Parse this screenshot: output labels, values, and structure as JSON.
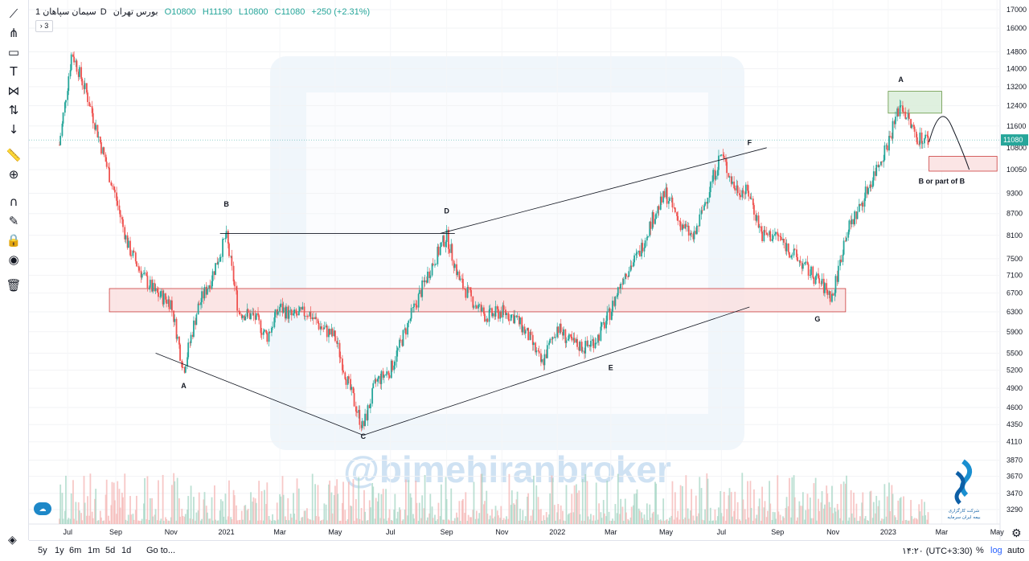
{
  "symbol": {
    "name": "سیمان سپاهان",
    "interval": "1D",
    "exchange": "بورس تهران",
    "open": "O10800",
    "high": "H11190",
    "low": "L10800",
    "close": "C11080",
    "change": "+250 (+2.31%)",
    "series_count": "3"
  },
  "watermark": "@bimehiranbroker",
  "logo_text": [
    "شرکت کارگزاری",
    "بیمه ایران سرمایه"
  ],
  "bottom": {
    "ranges": [
      "5y",
      "1y",
      "6m",
      "1m",
      "5d",
      "1d"
    ],
    "goto": "Go to...",
    "clock": "۱۴:۲۰ (UTC+3:30)",
    "percent": "%",
    "log": "log",
    "auto": "auto"
  },
  "toolbar": [
    "trend-line-icon",
    "pitchfork-icon",
    "rectangle-icon",
    "text-icon",
    "pattern-icon",
    "forecast-icon",
    "arrow-down-icon",
    "ruler-icon",
    "zoom-icon",
    "magnet-icon",
    "lock-pencil-icon",
    "lock-icon",
    "eye-icon",
    "trash-icon"
  ],
  "colors": {
    "up": "#26a69a",
    "down": "#ef5350",
    "price_tag": "#26a69a",
    "zone_red": "#e57373",
    "zone_green": "#81c784"
  },
  "chart_data": {
    "type": "candlestick",
    "x_labels": [
      "Jul",
      "Sep",
      "Nov",
      "2021",
      "Mar",
      "May",
      "Jul",
      "Sep",
      "Nov",
      "2022",
      "Mar",
      "May",
      "Jul",
      "Sep",
      "Nov",
      "2023",
      "Mar",
      "May"
    ],
    "y_ticks": [
      17000,
      16000,
      14800,
      14000,
      13200,
      12400,
      11600,
      10800,
      10050,
      9300,
      8700,
      8100,
      7500,
      7100,
      6700,
      6300,
      5900,
      5500,
      5200,
      4900,
      4600,
      4350,
      4110,
      3870,
      3670,
      3470,
      3290
    ],
    "last_price": 11080,
    "y_scale": "log",
    "price_path": [
      [
        "2020-07-01",
        10900
      ],
      [
        "2020-07-15",
        14800
      ],
      [
        "2020-08-01",
        12800
      ],
      [
        "2020-08-15",
        11000
      ],
      [
        "2020-09-01",
        9200
      ],
      [
        "2020-09-15",
        7800
      ],
      [
        "2020-10-01",
        7100
      ],
      [
        "2020-10-15",
        6700
      ],
      [
        "2020-11-01",
        6500
      ],
      [
        "2020-11-15",
        5200
      ],
      [
        "2020-12-01",
        6400
      ],
      [
        "2020-12-15",
        7000
      ],
      [
        "2021-01-01",
        8100
      ],
      [
        "2021-01-15",
        6300
      ],
      [
        "2021-02-01",
        6200
      ],
      [
        "2021-02-15",
        5800
      ],
      [
        "2021-03-01",
        6400
      ],
      [
        "2021-03-15",
        6200
      ],
      [
        "2021-04-01",
        6300
      ],
      [
        "2021-04-15",
        6000
      ],
      [
        "2021-05-01",
        5800
      ],
      [
        "2021-05-15",
        5000
      ],
      [
        "2021-06-01",
        4300
      ],
      [
        "2021-06-15",
        5000
      ],
      [
        "2021-07-01",
        5200
      ],
      [
        "2021-07-15",
        5800
      ],
      [
        "2021-08-01",
        6600
      ],
      [
        "2021-08-15",
        7300
      ],
      [
        "2021-09-01",
        8100
      ],
      [
        "2021-09-15",
        7000
      ],
      [
        "2021-10-01",
        6500
      ],
      [
        "2021-10-15",
        6200
      ],
      [
        "2021-11-01",
        6300
      ],
      [
        "2021-11-15",
        6200
      ],
      [
        "2021-12-01",
        5800
      ],
      [
        "2021-12-15",
        5300
      ],
      [
        "2022-01-01",
        6000
      ],
      [
        "2022-01-15",
        5700
      ],
      [
        "2022-02-01",
        5600
      ],
      [
        "2022-02-15",
        5800
      ],
      [
        "2022-03-01",
        6300
      ],
      [
        "2022-03-15",
        7100
      ],
      [
        "2022-04-01",
        7600
      ],
      [
        "2022-04-15",
        8500
      ],
      [
        "2022-05-01",
        9300
      ],
      [
        "2022-05-15",
        8500
      ],
      [
        "2022-06-01",
        8000
      ],
      [
        "2022-06-15",
        9200
      ],
      [
        "2022-07-01",
        10600
      ],
      [
        "2022-07-15",
        9500
      ],
      [
        "2022-08-01",
        9300
      ],
      [
        "2022-08-15",
        8100
      ],
      [
        "2022-09-01",
        8100
      ],
      [
        "2022-09-15",
        7700
      ],
      [
        "2022-10-01",
        7300
      ],
      [
        "2022-10-15",
        7000
      ],
      [
        "2022-11-01",
        6600
      ],
      [
        "2022-11-15",
        8100
      ],
      [
        "2022-12-01",
        8900
      ],
      [
        "2022-12-15",
        9800
      ],
      [
        "2023-01-01",
        11000
      ],
      [
        "2023-01-15",
        12500
      ],
      [
        "2023-02-01",
        11200
      ],
      [
        "2023-02-15",
        11080
      ]
    ],
    "annotations": [
      {
        "label": "A",
        "date": "2020-11-15",
        "price": 4900
      },
      {
        "label": "B",
        "date": "2021-01-01",
        "price": 8900
      },
      {
        "label": "C",
        "date": "2021-06-01",
        "price": 4150
      },
      {
        "label": "D",
        "date": "2021-09-01",
        "price": 8700
      },
      {
        "label": "E",
        "date": "2022-03-01",
        "price": 5200
      },
      {
        "label": "F",
        "date": "2022-08-01",
        "price": 10900
      },
      {
        "label": "G",
        "date": "2022-10-15",
        "price": 6100
      },
      {
        "label": "A",
        "date": "2023-01-15",
        "price": 13400
      },
      {
        "label": "B or part of B",
        "date": "2023-03-01",
        "price": 9600
      }
    ],
    "trend_lines": [
      {
        "from": [
          "2020-10-15",
          5500
        ],
        "to": [
          "2021-06-01",
          4200
        ]
      },
      {
        "from": [
          "2021-06-01",
          4200
        ],
        "to": [
          "2022-08-01",
          6400
        ]
      },
      {
        "from": [
          "2020-12-25",
          8150
        ],
        "to": [
          "2021-09-10",
          8150
        ]
      },
      {
        "from": [
          "2021-08-25",
          8150
        ],
        "to": [
          "2022-08-20",
          10800
        ]
      }
    ],
    "zones": [
      {
        "color": "red",
        "from": [
          "2020-08-25",
          6800
        ],
        "to": [
          "2022-11-15",
          6300
        ]
      },
      {
        "color": "green",
        "from": [
          "2023-01-01",
          13000
        ],
        "to": [
          "2023-03-01",
          12100
        ]
      },
      {
        "color": "red",
        "from": [
          "2023-02-15",
          10500
        ],
        "to": [
          "2023-05-01",
          10000
        ]
      }
    ]
  }
}
